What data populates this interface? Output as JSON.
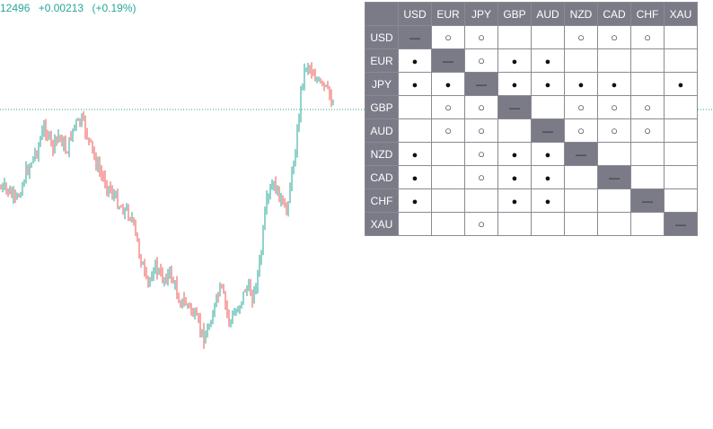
{
  "quote": {
    "price": "12496",
    "change": "+0.00213",
    "change_pct": "(+0.19%)"
  },
  "colors": {
    "up": "#26a69a",
    "down": "#ef5350",
    "header_bg": "#7a7b87",
    "grid": "#8a8a94"
  },
  "matrix": {
    "columns": [
      "USD",
      "EUR",
      "JPY",
      "GBP",
      "AUD",
      "NZD",
      "CAD",
      "CHF",
      "XAU"
    ],
    "rows": [
      {
        "label": "USD",
        "cells": [
          "—",
          "○",
          "○",
          "",
          "",
          "○",
          "○",
          "○",
          ""
        ]
      },
      {
        "label": "EUR",
        "cells": [
          "●",
          "—",
          "○",
          "●",
          "●",
          "",
          "",
          "",
          ""
        ]
      },
      {
        "label": "JPY",
        "cells": [
          "●",
          "●",
          "—",
          "●",
          "●",
          "●",
          "●",
          "",
          "●"
        ]
      },
      {
        "label": "GBP",
        "cells": [
          "",
          "○",
          "○",
          "—",
          "",
          "○",
          "○",
          "○",
          ""
        ]
      },
      {
        "label": "AUD",
        "cells": [
          "",
          "○",
          "○",
          "",
          "—",
          "○",
          "○",
          "○",
          ""
        ]
      },
      {
        "label": "NZD",
        "cells": [
          "●",
          "",
          "○",
          "●",
          "●",
          "—",
          "",
          "",
          ""
        ]
      },
      {
        "label": "CAD",
        "cells": [
          "●",
          "",
          "○",
          "●",
          "●",
          "",
          "—",
          "",
          ""
        ]
      },
      {
        "label": "CHF",
        "cells": [
          "●",
          "",
          "",
          "●",
          "●",
          "",
          "",
          "—",
          ""
        ]
      },
      {
        "label": "XAU",
        "cells": [
          "",
          "",
          "○",
          "",
          "",
          "",
          "",
          "",
          "—"
        ]
      }
    ]
  }
}
